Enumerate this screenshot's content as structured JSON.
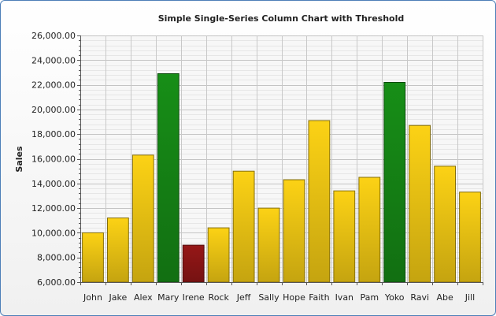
{
  "chart_data": {
    "type": "bar",
    "title": "Simple Single-Series Column Chart with Threshold",
    "xlabel": "",
    "ylabel": "Sales",
    "ylim": [
      6000,
      26000
    ],
    "y_ticks": [
      "6,000.00",
      "8,000.00",
      "10,000.00",
      "12,000.00",
      "14,000.00",
      "16,000.00",
      "18,000.00",
      "20,000.00",
      "22,000.00",
      "24,000.00",
      "26,000.00"
    ],
    "y_tick_values": [
      6000,
      8000,
      10000,
      12000,
      14000,
      16000,
      18000,
      20000,
      22000,
      24000,
      26000
    ],
    "categories": [
      "John",
      "Jake",
      "Alex",
      "Mary",
      "Irene",
      "Rock",
      "Jeff",
      "Sally",
      "Hope",
      "Faith",
      "Ivan",
      "Pam",
      "Yoko",
      "Ravi",
      "Abe",
      "Jill"
    ],
    "values": [
      10000,
      11200,
      16300,
      22900,
      9000,
      10400,
      15000,
      12000,
      14300,
      19100,
      13400,
      14500,
      22200,
      18700,
      15400,
      13300
    ],
    "bar_colors": [
      "#f0c814",
      "#f0c814",
      "#f0c814",
      "#168716",
      "#8f1616",
      "#f0c814",
      "#f0c814",
      "#f0c814",
      "#f0c814",
      "#f0c814",
      "#f0c814",
      "#f0c814",
      "#168716",
      "#f0c814",
      "#f0c814",
      "#f0c814"
    ],
    "grid": true,
    "legend": "none"
  }
}
